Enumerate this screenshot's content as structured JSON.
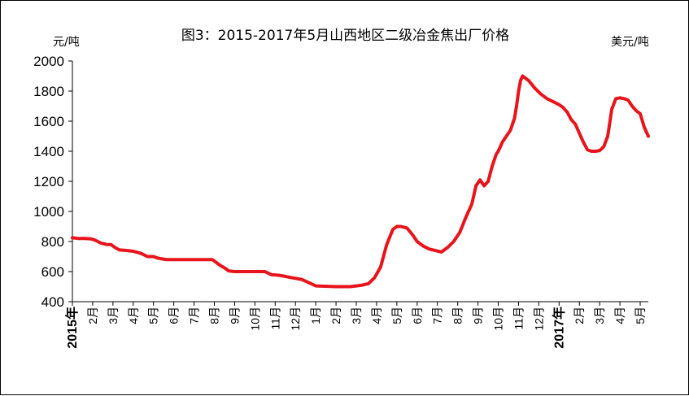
{
  "chart_data": {
    "type": "line",
    "title": "图3：2015-2017年5月山西地区二级冶金焦出厂价格",
    "ylabel_left": "元/吨",
    "ylabel_right": "美元/吨",
    "ylim": [
      400,
      2000
    ],
    "yticks": [
      400,
      600,
      800,
      1000,
      1200,
      1400,
      1600,
      1800,
      2000
    ],
    "grid": false,
    "x_tick_labels": [
      "2015年",
      "2月",
      "3月",
      "4月",
      "5月",
      "6月",
      "7月",
      "8月",
      "9月",
      "10月",
      "11月",
      "12月",
      "1月",
      "2月",
      "3月",
      "4月",
      "5月",
      "6月",
      "7月",
      "8月",
      "9月",
      "10月",
      "11月",
      "12月",
      "2017年",
      "2月",
      "3月",
      "4月",
      "5月"
    ],
    "series": [
      {
        "color": "#e8141c",
        "x": [
          0.0,
          0.3,
          0.6,
          0.9,
          1.1,
          1.4,
          1.7,
          1.9,
          2.1,
          2.3,
          2.7,
          3.0,
          3.2,
          3.4,
          3.7,
          4.0,
          4.2,
          4.6,
          5.0,
          6.0,
          6.9,
          7.1,
          7.3,
          7.5,
          7.7,
          8.0,
          8.5,
          9.0,
          9.3,
          9.5,
          9.8,
          10.0,
          10.2,
          10.5,
          10.8,
          11.0,
          11.3,
          11.6,
          12.0,
          13.0,
          13.7,
          14.0,
          14.3,
          14.6,
          14.9,
          15.2,
          15.5,
          15.8,
          16.0,
          16.2,
          16.5,
          16.8,
          17.0,
          17.3,
          17.6,
          17.9,
          18.2,
          18.5,
          18.8,
          19.1,
          19.4,
          19.7,
          19.9,
          20.1,
          20.3,
          20.5,
          20.7,
          20.9,
          21.0,
          21.2,
          21.4,
          21.6,
          21.8,
          21.9,
          22.0,
          22.1,
          22.2,
          22.5,
          22.8,
          23.1,
          23.4,
          23.7,
          24.0,
          24.2,
          24.4,
          24.6,
          24.8,
          25.0,
          25.2,
          25.4,
          25.6,
          25.8,
          26.0,
          26.2,
          26.4,
          26.6,
          26.8,
          27.0,
          27.2,
          27.4,
          27.6,
          27.8,
          28.0,
          28.2,
          28.4
        ],
        "values": [
          825,
          820,
          820,
          818,
          810,
          790,
          780,
          780,
          760,
          745,
          740,
          735,
          728,
          720,
          700,
          700,
          690,
          680,
          680,
          680,
          680,
          660,
          640,
          625,
          605,
          600,
          600,
          600,
          600,
          600,
          580,
          578,
          575,
          568,
          560,
          555,
          548,
          530,
          505,
          500,
          500,
          505,
          510,
          520,
          560,
          630,
          780,
          880,
          900,
          900,
          890,
          840,
          800,
          770,
          750,
          740,
          730,
          760,
          800,
          860,
          960,
          1050,
          1170,
          1210,
          1170,
          1200,
          1300,
          1380,
          1400,
          1460,
          1500,
          1540,
          1620,
          1700,
          1800,
          1870,
          1900,
          1870,
          1820,
          1780,
          1750,
          1730,
          1710,
          1690,
          1660,
          1610,
          1580,
          1520,
          1460,
          1410,
          1400,
          1400,
          1405,
          1430,
          1500,
          1680,
          1750,
          1755,
          1750,
          1740,
          1700,
          1670,
          1650,
          1560,
          1500
        ]
      }
    ]
  }
}
